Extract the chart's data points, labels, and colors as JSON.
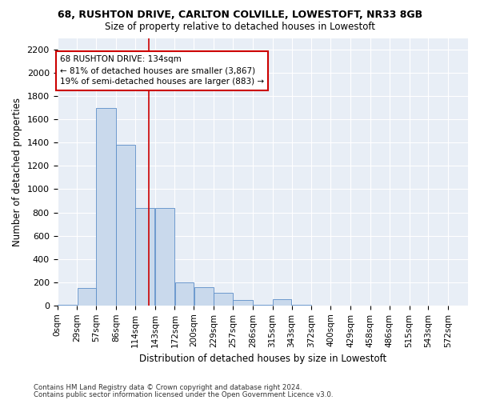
{
  "title1": "68, RUSHTON DRIVE, CARLTON COLVILLE, LOWESTOFT, NR33 8GB",
  "title2": "Size of property relative to detached houses in Lowestoft",
  "xlabel": "Distribution of detached houses by size in Lowestoft",
  "ylabel": "Number of detached properties",
  "bar_color": "#c9d9ec",
  "bar_edge_color": "#5b8dc8",
  "bg_color": "#e8eef6",
  "annotation_text": "68 RUSHTON DRIVE: 134sqm\n← 81% of detached houses are smaller (3,867)\n19% of semi-detached houses are larger (883) →",
  "vline_x": 134,
  "vline_color": "#cc0000",
  "categories": [
    "0sqm",
    "29sqm",
    "57sqm",
    "86sqm",
    "114sqm",
    "143sqm",
    "172sqm",
    "200sqm",
    "229sqm",
    "257sqm",
    "286sqm",
    "315sqm",
    "343sqm",
    "372sqm",
    "400sqm",
    "429sqm",
    "458sqm",
    "486sqm",
    "515sqm",
    "543sqm",
    "572sqm"
  ],
  "bin_edges": [
    0,
    29,
    57,
    86,
    114,
    143,
    172,
    200,
    229,
    257,
    286,
    315,
    343,
    372,
    400,
    429,
    458,
    486,
    515,
    543,
    572,
    601
  ],
  "values": [
    5,
    150,
    1700,
    1380,
    840,
    840,
    200,
    155,
    110,
    50,
    5,
    55,
    5,
    0,
    0,
    0,
    0,
    0,
    0,
    0,
    0
  ],
  "ylim": [
    0,
    2300
  ],
  "yticks": [
    0,
    200,
    400,
    600,
    800,
    1000,
    1200,
    1400,
    1600,
    1800,
    2000,
    2200
  ],
  "footer1": "Contains HM Land Registry data © Crown copyright and database right 2024.",
  "footer2": "Contains public sector information licensed under the Open Government Licence v3.0."
}
